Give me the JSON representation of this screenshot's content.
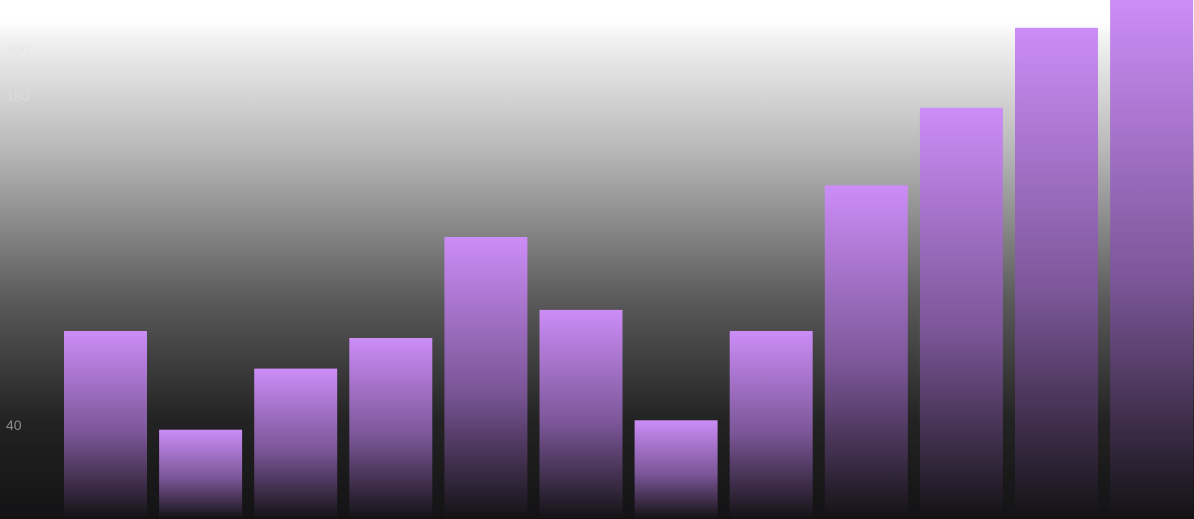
{
  "colors": {
    "bar_top": "#cc8df7",
    "bar_bottom": "#131214",
    "background_top": "#ffffff",
    "background_bottom": "#131214"
  },
  "chart_data": {
    "type": "bar",
    "title": "",
    "xlabel": "",
    "ylabel": "",
    "grid": false,
    "legend": "none",
    "categories": [
      "",
      "",
      "",
      "",
      "",
      "",
      "",
      "",
      "",
      "",
      "",
      ""
    ],
    "values": [
      80,
      38,
      64,
      77,
      120,
      89,
      42,
      80,
      142,
      175,
      209,
      221
    ],
    "ylim": [
      0,
      220
    ],
    "yticks": [
      {
        "value": 200,
        "label": "200"
      },
      {
        "value": 180,
        "label": "180"
      },
      {
        "value": 40,
        "label": "40"
      }
    ]
  }
}
